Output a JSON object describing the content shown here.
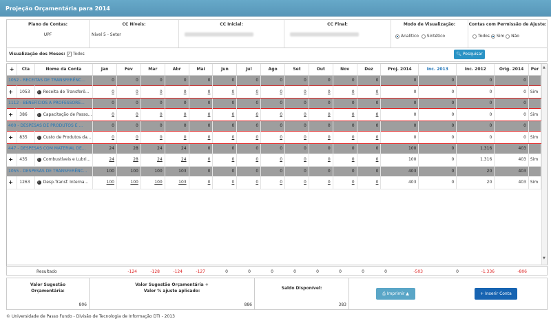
{
  "header": {
    "title": "Projeção Orçamentária para 2014"
  },
  "filters": {
    "plano_label": "Plano de Contas:",
    "plano_value": "UPF",
    "niveis_label": "CC Níveis:",
    "niveis_value": "Nível 5 - Setor",
    "inicial_label": "CC Inicial:",
    "final_label": "CC Final:",
    "modo_label": "Modo de Visualização:",
    "modo_analitico": "Analítico",
    "modo_sintetico": "Sintético",
    "perm_label": "Contas com Permissão de Ajuste:",
    "perm_todos": "Todos",
    "perm_sim": "Sim",
    "perm_nao": "Não"
  },
  "view": {
    "months_label": "Visualização dos Meses:",
    "todos": "Todos",
    "search_button": "Pesquisar"
  },
  "columns": {
    "cta": "Cta",
    "nome": "Nome da Conta",
    "jan": "Jan",
    "fev": "Fev",
    "mar": "Mar",
    "abr": "Abr",
    "mai": "Mai",
    "jun": "Jun",
    "jul": "Jul",
    "ago": "Ago",
    "set": "Set",
    "out": "Out",
    "nov": "Nov",
    "dez": "Dez",
    "proj": "Proj. 2014",
    "inc13": "Inc. 2013",
    "inc12": "Inc. 2012",
    "orig": "Orig. 2014",
    "per": "Per"
  },
  "rows": [
    {
      "name": "1052 - RECEITAS DE TRANSFERÊNC...",
      "v": [
        "0",
        "0",
        "0",
        "0",
        "0",
        "0",
        "0",
        "0",
        "0",
        "0",
        "0",
        "0",
        "0",
        "0",
        "0",
        "0"
      ]
    },
    {
      "cta": "1053",
      "name": "Receita de Transferê...",
      "v": [
        "0",
        "0",
        "0",
        "0",
        "0",
        "0",
        "0",
        "0",
        "0",
        "0",
        "0",
        "0",
        "0",
        "0",
        "0",
        "0"
      ],
      "per": "Sim"
    },
    {
      "name": "1112 - BENEFÍCIOS A PROFESSORE...",
      "v": [
        "0",
        "0",
        "0",
        "0",
        "0",
        "0",
        "0",
        "0",
        "0",
        "0",
        "0",
        "0",
        "0",
        "0",
        "0",
        "0"
      ]
    },
    {
      "cta": "386",
      "name": "Capacitação de Passo...",
      "v": [
        "0",
        "0",
        "0",
        "0",
        "0",
        "0",
        "0",
        "0",
        "0",
        "0",
        "0",
        "0",
        "0",
        "0",
        "0",
        "0"
      ],
      "per": "Sim"
    },
    {
      "name": "400 - DESPESAS DE PRODUTOS E ...",
      "v": [
        "0",
        "0",
        "0",
        "0",
        "0",
        "0",
        "0",
        "0",
        "0",
        "0",
        "0",
        "0",
        "0",
        "0",
        "0",
        "0"
      ]
    },
    {
      "cta": "835",
      "name": "Custo de Produtos da...",
      "v": [
        "0",
        "0",
        "0",
        "0",
        "0",
        "0",
        "0",
        "0",
        "0",
        "0",
        "0",
        "0",
        "0",
        "0",
        "0",
        "0"
      ],
      "per": "Sim"
    },
    {
      "name": "447 - DESPESAS COM MATERIAL DE...",
      "v": [
        "24",
        "28",
        "24",
        "24",
        "0",
        "0",
        "0",
        "0",
        "0",
        "0",
        "0",
        "0",
        "100",
        "0",
        "1.316",
        "403"
      ]
    },
    {
      "cta": "435",
      "name": "Combustíveis e Lubri...",
      "v": [
        "24",
        "28",
        "24",
        "24",
        "0",
        "0",
        "0",
        "0",
        "0",
        "0",
        "0",
        "0",
        "100",
        "0",
        "1.316",
        "403"
      ],
      "per": "Sim"
    },
    {
      "name": "1055 - DESPESAS DE TRANSFERÊNC...",
      "v": [
        "100",
        "100",
        "100",
        "103",
        "0",
        "0",
        "0",
        "0",
        "0",
        "0",
        "0",
        "0",
        "403",
        "0",
        "20",
        "403"
      ]
    },
    {
      "cta": "1263",
      "name": "Desp.Transf. Interna...",
      "v": [
        "100",
        "100",
        "100",
        "103",
        "0",
        "0",
        "0",
        "0",
        "0",
        "0",
        "0",
        "0",
        "403",
        "0",
        "20",
        "403"
      ],
      "per": "Sim"
    }
  ],
  "result": {
    "label": "Resultado",
    "values": [
      "-124",
      "-128",
      "-124",
      "-127",
      "0",
      "0",
      "0",
      "0",
      "0",
      "0",
      "0",
      "0",
      "-503",
      "0",
      "-1.336",
      "-806"
    ]
  },
  "summary": {
    "sug_label": "Valor Sugestão Orçamentária:",
    "sug_value": "806",
    "sug_ajuste_label": "Valor Sugestão Orçamentária + Valor % ajuste aplicado:",
    "sug_ajuste_value": "886",
    "saldo_label": "Saldo Disponível:",
    "saldo_value": "383",
    "print_button": "Imprimir",
    "insert_button": "Inserir Conta"
  },
  "footer": {
    "text": "© Universidade de Passo Fundo - Divisão de Tecnologia de Informação DTI - 2013"
  }
}
